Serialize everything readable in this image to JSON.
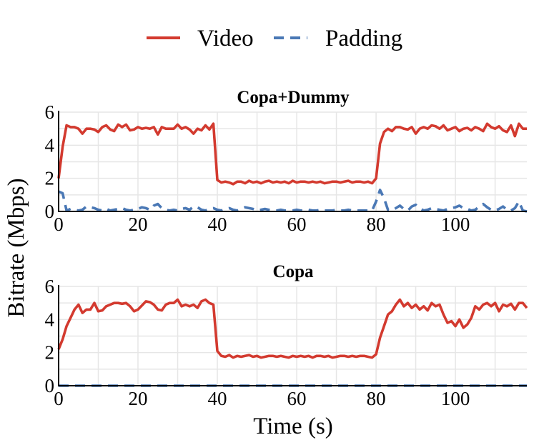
{
  "legend": {
    "placement": "top-center",
    "entries": [
      {
        "label": "Video",
        "color": "#d33a2f",
        "style": "solid"
      },
      {
        "label": "Padding",
        "color": "#4a78b5",
        "style": "dashed"
      }
    ]
  },
  "shared_ylabel": "Bitrate (Mbps)",
  "shared_xlabel": "Time (s)",
  "chart_data": [
    {
      "type": "line",
      "title": "Copa+Dummy",
      "xlim": [
        0,
        118
      ],
      "ylim": [
        0,
        6
      ],
      "xticks": [
        0,
        20,
        40,
        60,
        80,
        100
      ],
      "yticks": [
        0,
        2,
        4,
        6
      ],
      "grid": true,
      "series": [
        {
          "name": "Video",
          "color": "#d33a2f",
          "style": "solid",
          "x": [
            0,
            1,
            2,
            3,
            4,
            5,
            6,
            7,
            8,
            9,
            10,
            11,
            12,
            13,
            14,
            15,
            16,
            17,
            18,
            19,
            20,
            21,
            22,
            23,
            24,
            25,
            26,
            27,
            28,
            29,
            30,
            31,
            32,
            33,
            34,
            35,
            36,
            37,
            38,
            39,
            40,
            41,
            42,
            43,
            44,
            45,
            46,
            47,
            48,
            49,
            50,
            51,
            52,
            53,
            54,
            55,
            56,
            57,
            58,
            59,
            60,
            61,
            62,
            63,
            64,
            65,
            66,
            67,
            68,
            69,
            70,
            71,
            72,
            73,
            74,
            75,
            76,
            77,
            78,
            79,
            80,
            81,
            82,
            83,
            84,
            85,
            86,
            87,
            88,
            89,
            90,
            91,
            92,
            93,
            94,
            95,
            96,
            97,
            98,
            99,
            100,
            101,
            102,
            103,
            104,
            105,
            106,
            107,
            108,
            109,
            110,
            111,
            112,
            113,
            114,
            115,
            116,
            117,
            118
          ],
          "y": [
            2.0,
            3.9,
            5.2,
            5.1,
            5.1,
            5.0,
            4.7,
            5.0,
            5.0,
            4.95,
            4.8,
            5.1,
            5.2,
            4.95,
            4.85,
            5.25,
            5.1,
            5.25,
            4.9,
            4.95,
            5.1,
            5.0,
            5.05,
            5.0,
            5.1,
            4.65,
            5.1,
            5.0,
            5.0,
            5.0,
            5.25,
            5.0,
            5.1,
            4.95,
            4.7,
            5.0,
            4.9,
            5.2,
            4.95,
            5.3,
            1.9,
            1.75,
            1.8,
            1.75,
            1.65,
            1.8,
            1.8,
            1.7,
            1.85,
            1.75,
            1.8,
            1.7,
            1.8,
            1.85,
            1.75,
            1.8,
            1.75,
            1.8,
            1.7,
            1.85,
            1.75,
            1.8,
            1.8,
            1.75,
            1.8,
            1.75,
            1.8,
            1.7,
            1.75,
            1.8,
            1.8,
            1.75,
            1.8,
            1.85,
            1.75,
            1.8,
            1.8,
            1.75,
            1.8,
            1.7,
            2.0,
            4.1,
            4.8,
            5.0,
            4.85,
            5.1,
            5.1,
            5.0,
            4.95,
            5.1,
            4.7,
            5.0,
            5.1,
            5.0,
            5.2,
            5.15,
            5.0,
            5.2,
            4.9,
            5.0,
            5.1,
            4.85,
            5.0,
            5.05,
            4.9,
            5.1,
            5.0,
            4.85,
            5.3,
            5.1,
            5.0,
            5.15,
            4.9,
            4.8,
            5.2,
            4.55,
            5.3,
            5.0,
            5.0
          ],
          "unit": "Mbps"
        },
        {
          "name": "Padding",
          "color": "#4a78b5",
          "style": "dashed",
          "x": [
            0,
            1,
            2,
            3,
            4,
            5,
            6,
            7,
            8,
            9,
            10,
            11,
            12,
            13,
            14,
            15,
            16,
            17,
            18,
            19,
            20,
            21,
            22,
            23,
            24,
            25,
            26,
            27,
            28,
            29,
            30,
            31,
            32,
            33,
            34,
            35,
            36,
            37,
            38,
            39,
            40,
            41,
            42,
            43,
            44,
            45,
            46,
            47,
            48,
            49,
            50,
            51,
            52,
            53,
            54,
            55,
            56,
            57,
            58,
            59,
            60,
            61,
            62,
            63,
            64,
            65,
            66,
            67,
            68,
            69,
            70,
            71,
            72,
            73,
            74,
            75,
            76,
            77,
            78,
            79,
            80,
            81,
            82,
            83,
            84,
            85,
            86,
            87,
            88,
            89,
            90,
            91,
            92,
            93,
            94,
            95,
            96,
            97,
            98,
            99,
            100,
            101,
            102,
            103,
            104,
            105,
            106,
            107,
            108,
            109,
            110,
            111,
            112,
            113,
            114,
            115,
            116,
            117,
            118
          ],
          "y": [
            1.2,
            1.1,
            0.05,
            0.15,
            0.1,
            0.05,
            0.1,
            0.3,
            0.25,
            0.2,
            0.1,
            0.05,
            0.15,
            0.05,
            0.1,
            0.15,
            0.2,
            0.1,
            0.05,
            0.1,
            0.15,
            0.25,
            0.2,
            0.1,
            0.35,
            0.45,
            0.2,
            0.1,
            0.05,
            0.1,
            0.05,
            0.15,
            0.2,
            0.1,
            0.3,
            0.25,
            0.1,
            0.05,
            0.15,
            0.2,
            0.1,
            0.05,
            0.15,
            0.2,
            0.1,
            0.05,
            0.15,
            0.25,
            0.2,
            0.15,
            0.05,
            0.1,
            0.15,
            0.1,
            0.05,
            0.05,
            0.1,
            0.05,
            0.05,
            0.05,
            0.1,
            0.05,
            0.05,
            0.1,
            0.05,
            0.05,
            0.1,
            0.05,
            0.05,
            0.05,
            0.1,
            0.05,
            0.05,
            0.1,
            0.05,
            0.05,
            0.05,
            0.05,
            0.05,
            0.05,
            0.6,
            1.3,
            0.8,
            0.1,
            0.05,
            0.2,
            0.35,
            0.15,
            0.05,
            0.3,
            0.4,
            0.2,
            0.05,
            0.1,
            0.2,
            0.15,
            0.1,
            0.05,
            0.15,
            0.2,
            0.25,
            0.35,
            0.2,
            0.15,
            0.05,
            0.1,
            0.3,
            0.45,
            0.25,
            0.1,
            0.05,
            0.15,
            0.3,
            0.1,
            0.05,
            0.2,
            0.6,
            0.05,
            0.0
          ],
          "unit": "Mbps"
        }
      ]
    },
    {
      "type": "line",
      "title": "Copa",
      "xlim": [
        0,
        118
      ],
      "ylim": [
        0,
        6
      ],
      "xticks": [
        0,
        20,
        40,
        60,
        80,
        100
      ],
      "yticks": [
        0,
        2,
        4,
        6
      ],
      "grid": true,
      "series": [
        {
          "name": "Video",
          "color": "#d33a2f",
          "style": "solid",
          "x": [
            0,
            1,
            2,
            3,
            4,
            5,
            6,
            7,
            8,
            9,
            10,
            11,
            12,
            13,
            14,
            15,
            16,
            17,
            18,
            19,
            20,
            21,
            22,
            23,
            24,
            25,
            26,
            27,
            28,
            29,
            30,
            31,
            32,
            33,
            34,
            35,
            36,
            37,
            38,
            39,
            40,
            41,
            42,
            43,
            44,
            45,
            46,
            47,
            48,
            49,
            50,
            51,
            52,
            53,
            54,
            55,
            56,
            57,
            58,
            59,
            60,
            61,
            62,
            63,
            64,
            65,
            66,
            67,
            68,
            69,
            70,
            71,
            72,
            73,
            74,
            75,
            76,
            77,
            78,
            79,
            80,
            81,
            82,
            83,
            84,
            85,
            86,
            87,
            88,
            89,
            90,
            91,
            92,
            93,
            94,
            95,
            96,
            97,
            98,
            99,
            100,
            101,
            102,
            103,
            104,
            105,
            106,
            107,
            108,
            109,
            110,
            111,
            112,
            113,
            114,
            115,
            116,
            117,
            118
          ],
          "y": [
            2.2,
            2.8,
            3.6,
            4.1,
            4.6,
            4.9,
            4.4,
            4.6,
            4.6,
            5.0,
            4.5,
            4.55,
            4.8,
            4.9,
            5.0,
            5.0,
            4.95,
            5.0,
            4.8,
            4.5,
            4.6,
            4.85,
            5.1,
            5.05,
            4.9,
            4.6,
            4.55,
            4.9,
            5.0,
            5.0,
            5.2,
            4.8,
            4.9,
            4.8,
            4.9,
            4.7,
            5.1,
            5.2,
            5.0,
            4.9,
            2.1,
            1.8,
            1.75,
            1.85,
            1.7,
            1.8,
            1.75,
            1.8,
            1.85,
            1.75,
            1.8,
            1.7,
            1.75,
            1.8,
            1.8,
            1.75,
            1.8,
            1.75,
            1.7,
            1.8,
            1.75,
            1.8,
            1.75,
            1.8,
            1.7,
            1.8,
            1.8,
            1.75,
            1.8,
            1.7,
            1.75,
            1.8,
            1.8,
            1.75,
            1.8,
            1.75,
            1.8,
            1.8,
            1.75,
            1.7,
            1.9,
            2.9,
            3.6,
            4.3,
            4.5,
            4.9,
            5.2,
            4.8,
            5.0,
            4.7,
            4.9,
            4.6,
            4.8,
            4.55,
            5.0,
            4.8,
            4.9,
            4.3,
            3.8,
            3.9,
            3.6,
            4.0,
            3.5,
            3.7,
            4.1,
            4.8,
            4.6,
            4.9,
            5.0,
            4.8,
            5.0,
            4.5,
            4.9,
            4.8,
            4.95,
            4.6,
            5.0,
            5.0,
            4.7
          ],
          "unit": "Mbps"
        },
        {
          "name": "Padding",
          "color": "#4a78b5",
          "style": "dashed",
          "x": [
            0,
            118
          ],
          "y": [
            0.0,
            0.0
          ],
          "unit": "Mbps"
        }
      ]
    }
  ]
}
